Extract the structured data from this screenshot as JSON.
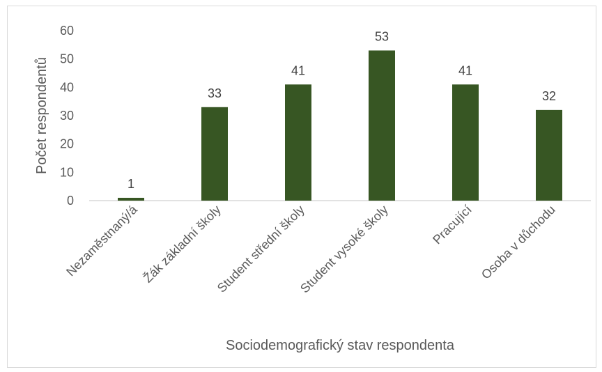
{
  "chart_data": {
    "type": "bar",
    "categories": [
      "Nezaměstnaný/á",
      "Žák základní školy",
      "Student střední školy",
      "Student vysoké školy",
      "Pracující",
      "Osoba v důchodu"
    ],
    "values": [
      1,
      33,
      41,
      53,
      41,
      32
    ],
    "title": "",
    "xlabel": "Sociodemografický stav respondenta",
    "ylabel": "Počet respondentů",
    "ylim": [
      0,
      60
    ],
    "yticks": [
      0,
      10,
      20,
      30,
      40,
      50,
      60
    ],
    "grid": false,
    "legend": "none",
    "bar_color": "#375623",
    "data_labels": true
  }
}
